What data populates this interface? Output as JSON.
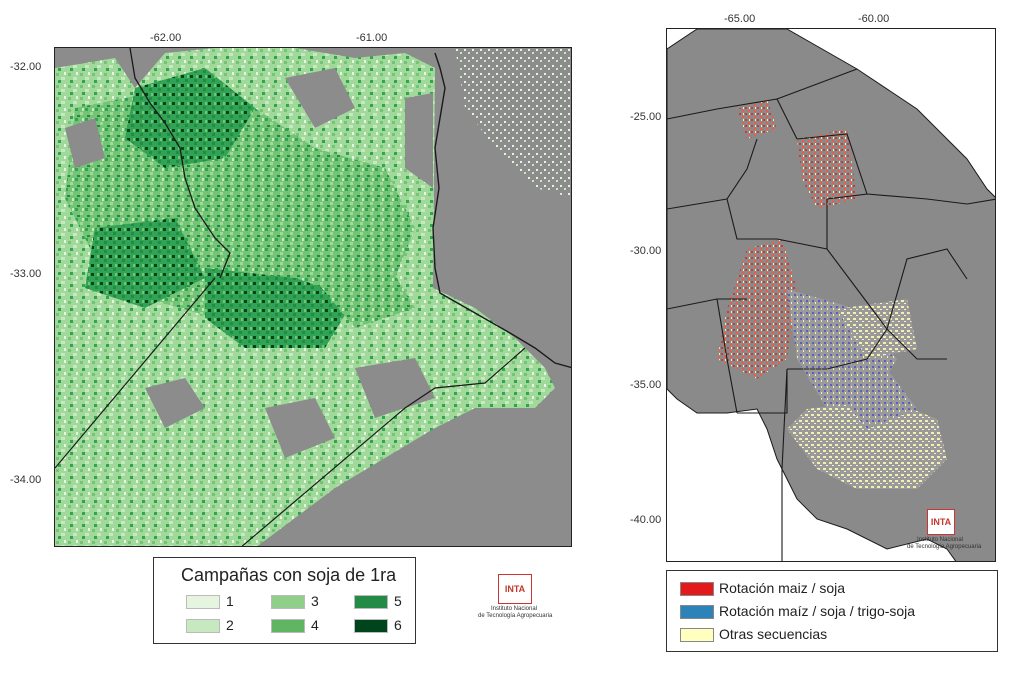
{
  "left_map": {
    "x_ticks": [
      "-62.00",
      "-61.00"
    ],
    "y_ticks": [
      "-32.00",
      "-33.00",
      "-34.00"
    ],
    "colors": {
      "background": "#8c8c8c",
      "class_1": "#e5f5e0",
      "class_2": "#c7e9c0",
      "class_3": "#a1d99b",
      "class_4": "#74c476",
      "class_5": "#31a354",
      "class_6": "#00441b"
    }
  },
  "left_legend": {
    "title": "Campañas con soja de 1ra",
    "items": [
      {
        "label": "1",
        "color": "#e5f5e0"
      },
      {
        "label": "2",
        "color": "#c7e9c0"
      },
      {
        "label": "3",
        "color": "#8fcf8a"
      },
      {
        "label": "4",
        "color": "#5fb562"
      },
      {
        "label": "5",
        "color": "#238b45"
      },
      {
        "label": "6",
        "color": "#00441b"
      }
    ]
  },
  "right_map": {
    "x_ticks": [
      "-65.00",
      "-60.00"
    ],
    "y_ticks": [
      "-25.00",
      "-30.00",
      "-35.00",
      "-40.00"
    ],
    "colors": {
      "background": "#8a8a8a",
      "maize_soy": "#e0312b",
      "maize_soy_wheat": "#5b5fc4",
      "other": "#f4f0b0"
    }
  },
  "right_legend": {
    "items": [
      {
        "label": "Rotación maiz / soja",
        "color": "#e31a1c"
      },
      {
        "label": "Rotación maíz / soja / trigo-soja",
        "color": "#2b83ba"
      },
      {
        "label": "Otras secuencias",
        "color": "#ffffc0"
      }
    ]
  },
  "logo": {
    "mark": "INTA",
    "line1": "Instituto Nacional",
    "line2": "de Tecnología Agropecuaria"
  }
}
